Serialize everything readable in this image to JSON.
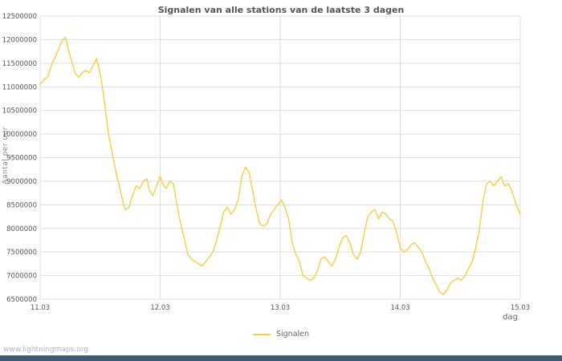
{
  "page": {
    "watermark": "www.lightningmaps.org",
    "footer_bar_color": "#3d5a77"
  },
  "chart_data": {
    "type": "line",
    "title": "Signalen van alle stations van de laatste 3 dagen",
    "xlabel": "dag",
    "ylabel": "Aantal per uur",
    "grid": true,
    "xlim": [
      11,
      15
    ],
    "ylim": [
      6500000,
      12500000
    ],
    "x_ticks": [
      {
        "value": 11,
        "label": "11.03"
      },
      {
        "value": 12,
        "label": "12.03"
      },
      {
        "value": 13,
        "label": "13.03"
      },
      {
        "value": 14,
        "label": "14.03"
      },
      {
        "value": 15,
        "label": "15.03"
      }
    ],
    "y_ticks": [
      {
        "value": 6500000,
        "label": "6500000"
      },
      {
        "value": 7000000,
        "label": "7000000"
      },
      {
        "value": 7500000,
        "label": "7500000"
      },
      {
        "value": 8000000,
        "label": "8000000"
      },
      {
        "value": 8500000,
        "label": "8500000"
      },
      {
        "value": 9000000,
        "label": "9000000"
      },
      {
        "value": 9500000,
        "label": "9500000"
      },
      {
        "value": 10000000,
        "label": "10000000"
      },
      {
        "value": 10500000,
        "label": "10500000"
      },
      {
        "value": 11000000,
        "label": "11000000"
      },
      {
        "value": 11500000,
        "label": "11500000"
      },
      {
        "value": 12000000,
        "label": "12000000"
      },
      {
        "value": 12500000,
        "label": "12500000"
      }
    ],
    "legend": {
      "position": "bottom",
      "entries": [
        "Signalen"
      ]
    },
    "series": [
      {
        "name": "Signalen",
        "color": "#f5ce42",
        "x": [
          11.0,
          11.03,
          11.06,
          11.08,
          11.1,
          11.13,
          11.16,
          11.19,
          11.21,
          11.23,
          11.26,
          11.29,
          11.32,
          11.35,
          11.38,
          11.41,
          11.44,
          11.47,
          11.49,
          11.51,
          11.54,
          11.57,
          11.6,
          11.63,
          11.66,
          11.69,
          11.71,
          11.74,
          11.77,
          11.8,
          11.83,
          11.86,
          11.89,
          11.91,
          11.94,
          11.97,
          12.0,
          12.02,
          12.05,
          12.08,
          12.11,
          12.14,
          12.17,
          12.2,
          12.23,
          12.26,
          12.29,
          12.32,
          12.35,
          12.38,
          12.41,
          12.44,
          12.47,
          12.5,
          12.53,
          12.56,
          12.59,
          12.62,
          12.65,
          12.68,
          12.71,
          12.74,
          12.77,
          12.8,
          12.83,
          12.86,
          12.89,
          12.92,
          12.95,
          12.98,
          13.01,
          13.04,
          13.07,
          13.1,
          13.13,
          13.16,
          13.19,
          13.22,
          13.25,
          13.28,
          13.31,
          13.34,
          13.37,
          13.4,
          13.43,
          13.46,
          13.49,
          13.52,
          13.55,
          13.58,
          13.61,
          13.64,
          13.67,
          13.7,
          13.73,
          13.76,
          13.79,
          13.82,
          13.85,
          13.88,
          13.91,
          13.94,
          13.97,
          14.0,
          14.03,
          14.06,
          14.09,
          14.12,
          14.15,
          14.18,
          14.21,
          14.24,
          14.27,
          14.3,
          14.33,
          14.36,
          14.39,
          14.42,
          14.45,
          14.48,
          14.51,
          14.54,
          14.57,
          14.6,
          14.63,
          14.66,
          14.69,
          14.72,
          14.75,
          14.78,
          14.81,
          14.84,
          14.87,
          14.9,
          14.93,
          14.96,
          15.0
        ],
        "y": [
          11050000,
          11150000,
          11200000,
          11350000,
          11500000,
          11650000,
          11850000,
          12000000,
          12050000,
          11850000,
          11550000,
          11300000,
          11200000,
          11300000,
          11350000,
          11300000,
          11450000,
          11600000,
          11400000,
          11150000,
          10600000,
          10000000,
          9600000,
          9200000,
          8900000,
          8550000,
          8400000,
          8450000,
          8700000,
          8900000,
          8850000,
          9000000,
          9050000,
          8800000,
          8700000,
          8900000,
          9100000,
          8950000,
          8850000,
          9000000,
          8950000,
          8500000,
          8100000,
          7800000,
          7450000,
          7350000,
          7300000,
          7250000,
          7200000,
          7300000,
          7400000,
          7500000,
          7750000,
          8050000,
          8350000,
          8450000,
          8300000,
          8400000,
          8600000,
          9100000,
          9300000,
          9200000,
          8800000,
          8400000,
          8100000,
          8050000,
          8100000,
          8300000,
          8400000,
          8500000,
          8600000,
          8450000,
          8200000,
          7700000,
          7450000,
          7300000,
          7000000,
          6950000,
          6900000,
          6950000,
          7100000,
          7350000,
          7400000,
          7300000,
          7200000,
          7350000,
          7600000,
          7800000,
          7850000,
          7700000,
          7450000,
          7350000,
          7500000,
          7900000,
          8250000,
          8350000,
          8400000,
          8200000,
          8350000,
          8300000,
          8200000,
          8150000,
          7900000,
          7600000,
          7500000,
          7550000,
          7650000,
          7700000,
          7600000,
          7500000,
          7300000,
          7150000,
          6950000,
          6800000,
          6650000,
          6600000,
          6700000,
          6850000,
          6900000,
          6950000,
          6900000,
          7000000,
          7150000,
          7300000,
          7600000,
          8000000,
          8600000,
          8950000,
          9000000,
          8900000,
          9000000,
          9100000,
          8900000,
          8950000,
          8800000,
          8550000,
          8300000
        ]
      }
    ]
  }
}
